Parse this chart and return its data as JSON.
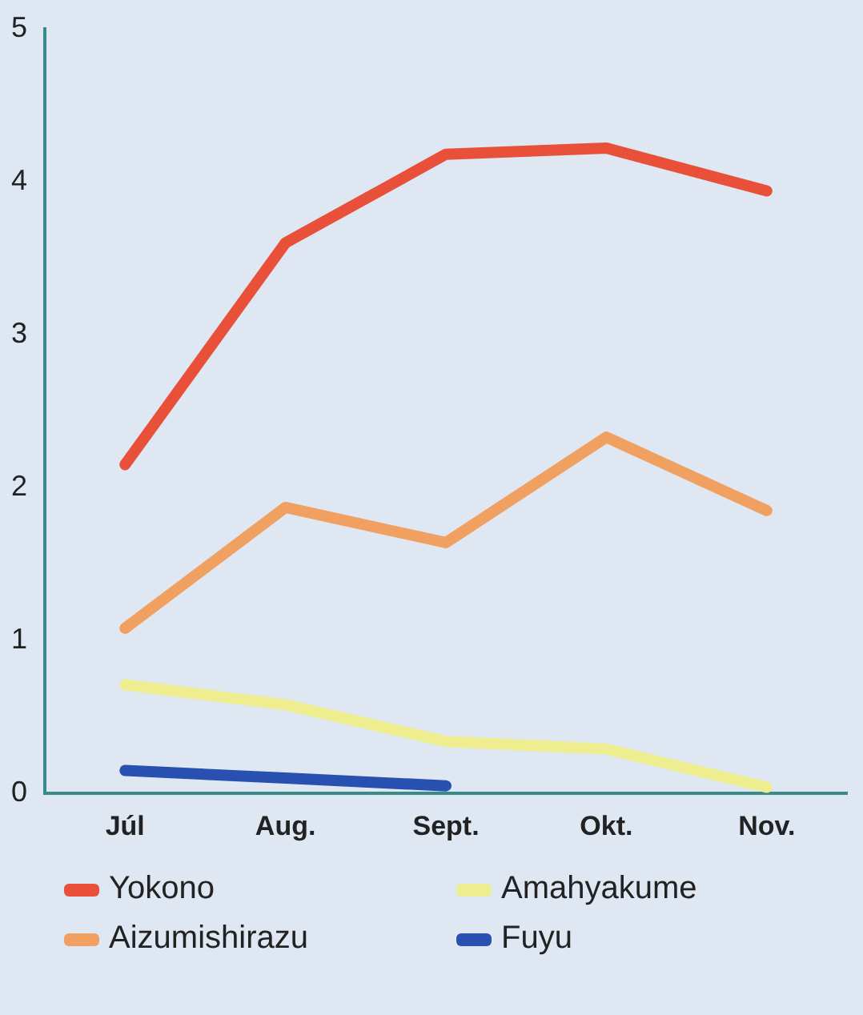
{
  "chart_data": {
    "type": "line",
    "categories": [
      "Júl",
      "Aug.",
      "Sept.",
      "Okt.",
      "Nov."
    ],
    "ylim": [
      0,
      5
    ],
    "yticks": [
      0,
      1,
      2,
      3,
      4,
      5
    ],
    "grid": false,
    "legend": "bottom",
    "marker": "none",
    "line_style": "solid",
    "series": [
      {
        "name": "Yokono",
        "color": "#e8503a",
        "values": [
          2.15,
          3.6,
          4.18,
          4.22,
          3.94
        ]
      },
      {
        "name": "Amahyakume",
        "color": "#eeee90",
        "values": [
          0.71,
          0.58,
          0.34,
          0.29,
          0.04
        ]
      },
      {
        "name": "Aizumishirazu",
        "color": "#f0a060",
        "values": [
          1.08,
          1.87,
          1.64,
          2.33,
          1.85
        ]
      },
      {
        "name": "Fuyu",
        "color": "#2850b0",
        "values": [
          0.15,
          0.1,
          0.05,
          null,
          null
        ]
      }
    ]
  }
}
